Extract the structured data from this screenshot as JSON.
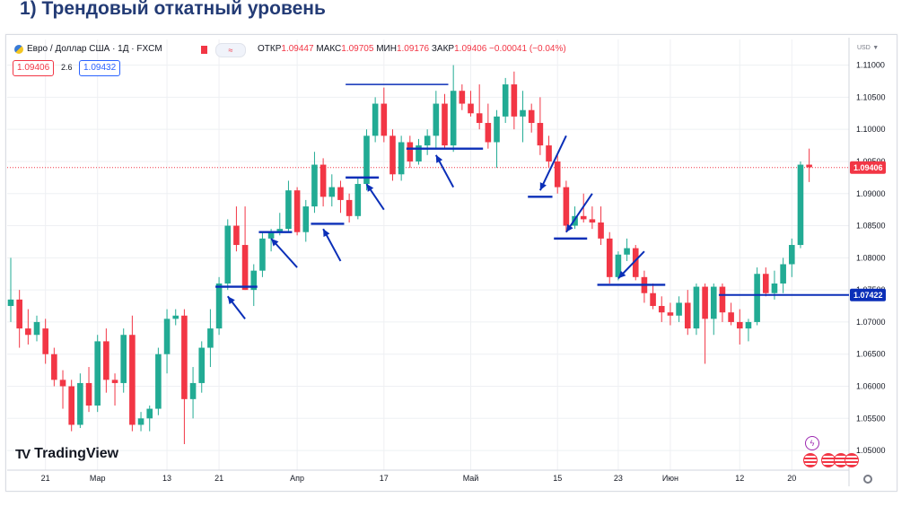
{
  "slide": {
    "title": "1) Трендовый откатный уровень"
  },
  "header": {
    "symbol": "Евро / Доллар США · 1Д · FXCM",
    "icons": [
      "currency-pair-icon",
      "market-closed-icon",
      "indicator-toggle-icon"
    ],
    "ohlc": {
      "open_label": "ОТКР",
      "open": "1.09447",
      "high_label": "МАКС",
      "high": "1.09705",
      "low_label": "МИН",
      "low": "1.09176",
      "close_label": "ЗАКР",
      "close": "1.09406",
      "change": "−0.00041 (−0.04%)"
    },
    "bid": "1.09406",
    "spread": "2.6",
    "ask": "1.09432"
  },
  "axis": {
    "currency": "USD",
    "currency_icon": "chevron-down-icon"
  },
  "brand": {
    "logo_mark": "TV",
    "name": "TradingView"
  },
  "bottom_icons": [
    "lightning-icon",
    "us-flag-icon",
    "eu-flag-icon",
    "settings-icon"
  ],
  "colors": {
    "up": "#22ab94",
    "down": "#f23645",
    "annotation": "#0b2fb8",
    "price_line": "#f23645",
    "grid": "#eef0f3"
  },
  "chart_data": {
    "type": "candlestick",
    "title": "Евро / Доллар США · 1Д · FXCM",
    "ylim": [
      1.0475,
      1.1112
    ],
    "y_ticks": [
      1.05,
      1.055,
      1.06,
      1.065,
      1.07,
      1.075,
      1.08,
      1.085,
      1.09,
      1.095,
      1.1,
      1.105,
      1.11
    ],
    "y_tick_labels": [
      "1.05000",
      "1.05500",
      "1.06000",
      "1.06500",
      "1.07000",
      "1.07500",
      "1.08000",
      "1.08500",
      "1.09000",
      "1.09500",
      "1.10000",
      "1.10500",
      "1.11000"
    ],
    "x_ticks": [
      {
        "index": 4,
        "label": "21"
      },
      {
        "index": 10,
        "label": "Мар"
      },
      {
        "index": 18,
        "label": "13"
      },
      {
        "index": 24,
        "label": "21"
      },
      {
        "index": 33,
        "label": "Апр"
      },
      {
        "index": 43,
        "label": "17"
      },
      {
        "index": 53,
        "label": "Май"
      },
      {
        "index": 63,
        "label": "15"
      },
      {
        "index": 70,
        "label": "23"
      },
      {
        "index": 76,
        "label": "Июн"
      },
      {
        "index": 84,
        "label": "12"
      },
      {
        "index": 90,
        "label": "20"
      }
    ],
    "candles": [
      {
        "o": 1.0725,
        "h": 1.08,
        "l": 1.07,
        "c": 1.0735
      },
      {
        "o": 1.0735,
        "h": 1.075,
        "l": 1.066,
        "c": 1.069
      },
      {
        "o": 1.069,
        "h": 1.072,
        "l": 1.0665,
        "c": 1.068
      },
      {
        "o": 1.068,
        "h": 1.071,
        "l": 1.067,
        "c": 1.07
      },
      {
        "o": 1.069,
        "h": 1.0705,
        "l": 1.0635,
        "c": 1.065
      },
      {
        "o": 1.065,
        "h": 1.066,
        "l": 1.06,
        "c": 1.061
      },
      {
        "o": 1.061,
        "h": 1.0625,
        "l": 1.0565,
        "c": 1.06
      },
      {
        "o": 1.06,
        "h": 1.061,
        "l": 1.053,
        "c": 1.054
      },
      {
        "o": 1.054,
        "h": 1.062,
        "l": 1.0535,
        "c": 1.0605
      },
      {
        "o": 1.0605,
        "h": 1.063,
        "l": 1.056,
        "c": 1.057
      },
      {
        "o": 1.057,
        "h": 1.068,
        "l": 1.056,
        "c": 1.067
      },
      {
        "o": 1.067,
        "h": 1.069,
        "l": 1.059,
        "c": 1.061
      },
      {
        "o": 1.061,
        "h": 1.062,
        "l": 1.057,
        "c": 1.0605
      },
      {
        "o": 1.0605,
        "h": 1.069,
        "l": 1.059,
        "c": 1.068
      },
      {
        "o": 1.068,
        "h": 1.071,
        "l": 1.053,
        "c": 1.054
      },
      {
        "o": 1.054,
        "h": 1.056,
        "l": 1.053,
        "c": 1.055
      },
      {
        "o": 1.055,
        "h": 1.057,
        "l": 1.053,
        "c": 1.0565
      },
      {
        "o": 1.0565,
        "h": 1.066,
        "l": 1.0555,
        "c": 1.065
      },
      {
        "o": 1.065,
        "h": 1.072,
        "l": 1.062,
        "c": 1.0705
      },
      {
        "o": 1.0705,
        "h": 1.072,
        "l": 1.0695,
        "c": 1.071
      },
      {
        "o": 1.071,
        "h": 1.072,
        "l": 1.051,
        "c": 1.058
      },
      {
        "o": 1.058,
        "h": 1.063,
        "l": 1.055,
        "c": 1.0605
      },
      {
        "o": 1.0605,
        "h": 1.067,
        "l": 1.059,
        "c": 1.066
      },
      {
        "o": 1.066,
        "h": 1.072,
        "l": 1.063,
        "c": 1.069
      },
      {
        "o": 1.069,
        "h": 1.077,
        "l": 1.068,
        "c": 1.076
      },
      {
        "o": 1.076,
        "h": 1.086,
        "l": 1.075,
        "c": 1.085
      },
      {
        "o": 1.085,
        "h": 1.088,
        "l": 1.081,
        "c": 1.082
      },
      {
        "o": 1.082,
        "h": 1.088,
        "l": 1.075,
        "c": 1.075
      },
      {
        "o": 1.075,
        "h": 1.079,
        "l": 1.0725,
        "c": 1.078
      },
      {
        "o": 1.078,
        "h": 1.084,
        "l": 1.077,
        "c": 1.083
      },
      {
        "o": 1.083,
        "h": 1.0845,
        "l": 1.081,
        "c": 1.084
      },
      {
        "o": 1.084,
        "h": 1.087,
        "l": 1.0835,
        "c": 1.0845
      },
      {
        "o": 1.0845,
        "h": 1.092,
        "l": 1.084,
        "c": 1.0905
      },
      {
        "o": 1.0905,
        "h": 1.091,
        "l": 1.0835,
        "c": 1.084
      },
      {
        "o": 1.084,
        "h": 1.089,
        "l": 1.0825,
        "c": 1.088
      },
      {
        "o": 1.088,
        "h": 1.0965,
        "l": 1.087,
        "c": 1.0945
      },
      {
        "o": 1.0945,
        "h": 1.0955,
        "l": 1.088,
        "c": 1.0895
      },
      {
        "o": 1.0895,
        "h": 1.093,
        "l": 1.088,
        "c": 1.091
      },
      {
        "o": 1.091,
        "h": 1.092,
        "l": 1.087,
        "c": 1.089
      },
      {
        "o": 1.089,
        "h": 1.09,
        "l": 1.0855,
        "c": 1.0865
      },
      {
        "o": 1.0865,
        "h": 1.0925,
        "l": 1.086,
        "c": 1.0915
      },
      {
        "o": 1.0915,
        "h": 1.1,
        "l": 1.0905,
        "c": 1.099
      },
      {
        "o": 1.099,
        "h": 1.105,
        "l": 1.098,
        "c": 1.104
      },
      {
        "o": 1.104,
        "h": 1.1065,
        "l": 1.098,
        "c": 1.099
      },
      {
        "o": 1.099,
        "h": 1.1,
        "l": 1.092,
        "c": 1.093
      },
      {
        "o": 1.093,
        "h": 1.099,
        "l": 1.092,
        "c": 1.098
      },
      {
        "o": 1.098,
        "h": 1.099,
        "l": 1.094,
        "c": 1.095
      },
      {
        "o": 1.095,
        "h": 1.0985,
        "l": 1.0945,
        "c": 1.0975
      },
      {
        "o": 1.0975,
        "h": 1.1,
        "l": 1.096,
        "c": 1.099
      },
      {
        "o": 1.099,
        "h": 1.106,
        "l": 1.097,
        "c": 1.104
      },
      {
        "o": 1.104,
        "h": 1.1055,
        "l": 1.097,
        "c": 1.0975
      },
      {
        "o": 1.0975,
        "h": 1.11,
        "l": 1.0965,
        "c": 1.106
      },
      {
        "o": 1.106,
        "h": 1.107,
        "l": 1.103,
        "c": 1.104
      },
      {
        "o": 1.104,
        "h": 1.106,
        "l": 1.102,
        "c": 1.1025
      },
      {
        "o": 1.1025,
        "h": 1.107,
        "l": 1.1,
        "c": 1.101
      },
      {
        "o": 1.101,
        "h": 1.104,
        "l": 1.097,
        "c": 1.098
      },
      {
        "o": 1.098,
        "h": 1.103,
        "l": 1.094,
        "c": 1.102
      },
      {
        "o": 1.102,
        "h": 1.108,
        "l": 1.101,
        "c": 1.107
      },
      {
        "o": 1.107,
        "h": 1.109,
        "l": 1.1,
        "c": 1.102
      },
      {
        "o": 1.102,
        "h": 1.106,
        "l": 1.098,
        "c": 1.103
      },
      {
        "o": 1.103,
        "h": 1.104,
        "l": 1.0995,
        "c": 1.101
      },
      {
        "o": 1.101,
        "h": 1.105,
        "l": 1.096,
        "c": 1.0975
      },
      {
        "o": 1.0975,
        "h": 1.099,
        "l": 1.094,
        "c": 1.095
      },
      {
        "o": 1.095,
        "h": 1.096,
        "l": 1.09,
        "c": 1.091
      },
      {
        "o": 1.091,
        "h": 1.092,
        "l": 1.084,
        "c": 1.085
      },
      {
        "o": 1.085,
        "h": 1.088,
        "l": 1.0845,
        "c": 1.0865
      },
      {
        "o": 1.0865,
        "h": 1.09,
        "l": 1.0855,
        "c": 1.086
      },
      {
        "o": 1.086,
        "h": 1.088,
        "l": 1.0845,
        "c": 1.0855
      },
      {
        "o": 1.0855,
        "h": 1.088,
        "l": 1.082,
        "c": 1.083
      },
      {
        "o": 1.083,
        "h": 1.084,
        "l": 1.076,
        "c": 1.077
      },
      {
        "o": 1.077,
        "h": 1.081,
        "l": 1.0765,
        "c": 1.0805
      },
      {
        "o": 1.0805,
        "h": 1.083,
        "l": 1.0795,
        "c": 1.0815
      },
      {
        "o": 1.0815,
        "h": 1.082,
        "l": 1.0765,
        "c": 1.077
      },
      {
        "o": 1.077,
        "h": 1.078,
        "l": 1.073,
        "c": 1.0745
      },
      {
        "o": 1.0745,
        "h": 1.076,
        "l": 1.072,
        "c": 1.0725
      },
      {
        "o": 1.0725,
        "h": 1.074,
        "l": 1.07,
        "c": 1.0715
      },
      {
        "o": 1.0715,
        "h": 1.073,
        "l": 1.0695,
        "c": 1.071
      },
      {
        "o": 1.071,
        "h": 1.074,
        "l": 1.07,
        "c": 1.073
      },
      {
        "o": 1.073,
        "h": 1.075,
        "l": 1.068,
        "c": 1.069
      },
      {
        "o": 1.069,
        "h": 1.076,
        "l": 1.068,
        "c": 1.0755
      },
      {
        "o": 1.0755,
        "h": 1.076,
        "l": 1.0635,
        "c": 1.0705
      },
      {
        "o": 1.0705,
        "h": 1.076,
        "l": 1.068,
        "c": 1.0755
      },
      {
        "o": 1.0755,
        "h": 1.076,
        "l": 1.07,
        "c": 1.0715
      },
      {
        "o": 1.0715,
        "h": 1.073,
        "l": 1.0695,
        "c": 1.07
      },
      {
        "o": 1.07,
        "h": 1.072,
        "l": 1.0665,
        "c": 1.069
      },
      {
        "o": 1.069,
        "h": 1.0705,
        "l": 1.067,
        "c": 1.07
      },
      {
        "o": 1.07,
        "h": 1.0785,
        "l": 1.0695,
        "c": 1.0775
      },
      {
        "o": 1.0775,
        "h": 1.0785,
        "l": 1.074,
        "c": 1.0745
      },
      {
        "o": 1.0745,
        "h": 1.078,
        "l": 1.0735,
        "c": 1.076
      },
      {
        "o": 1.076,
        "h": 1.08,
        "l": 1.0745,
        "c": 1.079
      },
      {
        "o": 1.079,
        "h": 1.083,
        "l": 1.077,
        "c": 1.082
      },
      {
        "o": 1.082,
        "h": 1.095,
        "l": 1.0815,
        "c": 1.0945
      },
      {
        "o": 1.0945,
        "h": 1.097,
        "l": 1.0918,
        "c": 1.0941
      }
    ],
    "annotations": {
      "levels": [
        {
          "price": 1.0755,
          "from": 24,
          "to": 28
        },
        {
          "price": 1.084,
          "from": 29,
          "to": 32
        },
        {
          "price": 1.0853,
          "from": 35,
          "to": 38
        },
        {
          "price": 1.0925,
          "from": 39,
          "to": 42
        },
        {
          "price": 1.097,
          "from": 46,
          "to": 54
        },
        {
          "price": 1.0895,
          "from": 60,
          "to": 62
        },
        {
          "price": 1.083,
          "from": 63,
          "to": 66
        },
        {
          "price": 1.0758,
          "from": 68,
          "to": 75
        },
        {
          "price": 1.107,
          "from": 39,
          "to": 50
        }
      ],
      "arrows": [
        {
          "from": [
            27,
            1.0705
          ],
          "to": [
            25,
            1.074
          ]
        },
        {
          "from": [
            33,
            1.0785
          ],
          "to": [
            30,
            1.083
          ]
        },
        {
          "from": [
            38,
            1.0795
          ],
          "to": [
            36,
            1.0845
          ]
        },
        {
          "from": [
            43,
            1.0875
          ],
          "to": [
            41,
            1.0915
          ]
        },
        {
          "from": [
            51,
            1.091
          ],
          "to": [
            49,
            1.096
          ]
        },
        {
          "from": [
            64,
            1.099
          ],
          "to": [
            61,
            1.0905
          ]
        },
        {
          "from": [
            67,
            1.09
          ],
          "to": [
            64,
            1.084
          ]
        },
        {
          "from": [
            73,
            1.081
          ],
          "to": [
            70,
            1.0768
          ]
        }
      ],
      "support_line": {
        "price": 1.07422,
        "from": 82
      }
    },
    "price_labels": [
      {
        "price": 1.09406,
        "text": "1.09406",
        "color": "#f23645"
      },
      {
        "price": 1.07422,
        "text": "1.07422",
        "color": "#0b2fb8"
      }
    ]
  }
}
